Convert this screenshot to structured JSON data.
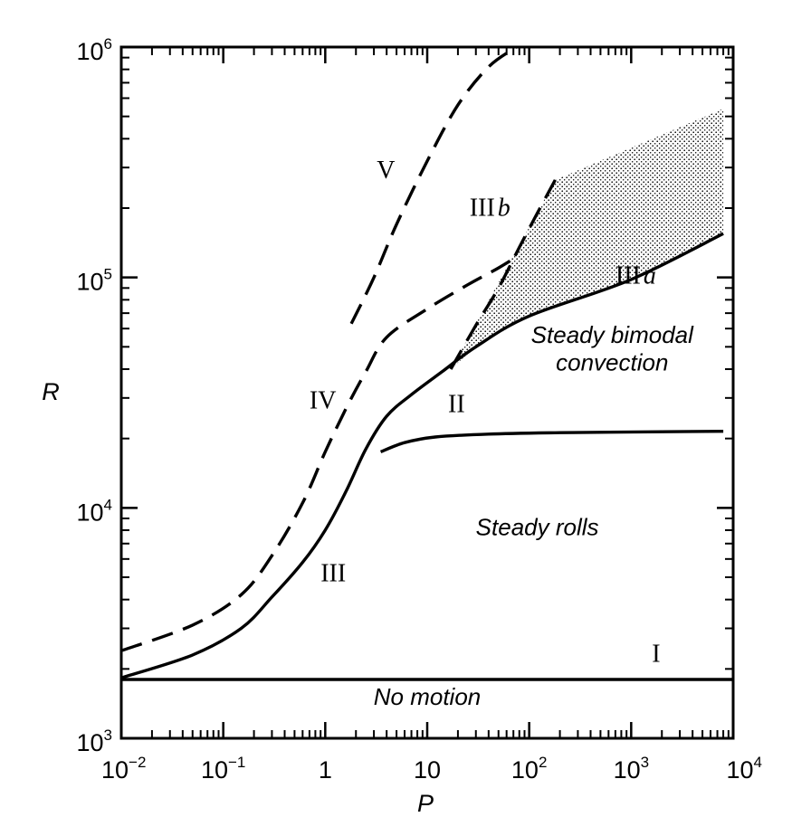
{
  "chart_data": {
    "type": "line",
    "xlabel": "P",
    "ylabel": "R",
    "x_scale": "log",
    "y_scale": "log",
    "xlim": [
      0.01,
      10000
    ],
    "ylim": [
      1000,
      1000000
    ],
    "grid": false,
    "x_ticks": [
      {
        "value": 0.01,
        "base": "10",
        "exp": "−2"
      },
      {
        "value": 0.1,
        "base": "10",
        "exp": "−1"
      },
      {
        "value": 1,
        "base": "1",
        "exp": ""
      },
      {
        "value": 10,
        "base": "10",
        "exp": ""
      },
      {
        "value": 100,
        "base": "10",
        "exp": "2"
      },
      {
        "value": 1000,
        "base": "10",
        "exp": "3"
      },
      {
        "value": 10000,
        "base": "10",
        "exp": "4"
      }
    ],
    "y_ticks": [
      {
        "value": 1000,
        "base": "10",
        "exp": "3"
      },
      {
        "value": 10000,
        "base": "10",
        "exp": "4"
      },
      {
        "value": 100000,
        "base": "10",
        "exp": "5"
      },
      {
        "value": 1000000,
        "base": "10",
        "exp": "6"
      }
    ],
    "curves": [
      {
        "label": "I",
        "style": "solid",
        "points": [
          [
            0.01,
            1800
          ],
          [
            10000,
            1800
          ]
        ]
      },
      {
        "label": "III",
        "style": "solid",
        "points": [
          [
            0.01,
            1830
          ],
          [
            0.05,
            2300
          ],
          [
            0.15,
            3000
          ],
          [
            0.3,
            4100
          ],
          [
            0.6,
            5800
          ],
          [
            1,
            8000
          ],
          [
            1.6,
            11800
          ],
          [
            2.5,
            18000
          ],
          [
            4,
            25000
          ],
          [
            7,
            31000
          ],
          [
            14,
            39000
          ],
          [
            30,
            50000
          ],
          [
            100,
            68000
          ],
          [
            1000,
            98000
          ],
          [
            8000,
            155000
          ]
        ]
      },
      {
        "label": "II",
        "style": "solid",
        "points": [
          [
            3.5,
            17500
          ],
          [
            6,
            19200
          ],
          [
            12,
            20300
          ],
          [
            40,
            20900
          ],
          [
            200,
            21200
          ],
          [
            2000,
            21400
          ],
          [
            8000,
            21500
          ]
        ]
      },
      {
        "label": "IV",
        "style": "dashed",
        "points": [
          [
            0.01,
            2400
          ],
          [
            0.05,
            3100
          ],
          [
            0.15,
            4200
          ],
          [
            0.3,
            6200
          ],
          [
            0.6,
            10500
          ],
          [
            1,
            17500
          ],
          [
            1.6,
            27000
          ],
          [
            2.5,
            39000
          ],
          [
            4,
            55000
          ],
          [
            10,
            73000
          ],
          [
            25,
            93000
          ],
          [
            50,
            110000
          ],
          [
            80,
            125000
          ]
        ]
      },
      {
        "label": "IIIb",
        "style": "dashed",
        "points": [
          [
            17,
            40000
          ],
          [
            30,
            62000
          ],
          [
            50,
            90000
          ],
          [
            80,
            135000
          ],
          [
            120,
            190000
          ],
          [
            180,
            265000
          ]
        ]
      },
      {
        "label": "V",
        "style": "dashed",
        "points": [
          [
            1.8,
            63000
          ],
          [
            3,
            100000
          ],
          [
            5,
            170000
          ],
          [
            10,
            320000
          ],
          [
            20,
            560000
          ],
          [
            40,
            820000
          ],
          [
            75,
            1000000
          ]
        ]
      }
    ],
    "shaded_region": {
      "label": "Steady bimodal convection",
      "points": [
        [
          17,
          40000
        ],
        [
          180,
          265000
        ],
        [
          8000,
          540000
        ],
        [
          8000,
          155000
        ],
        [
          1000,
          98000
        ],
        [
          100,
          68000
        ],
        [
          30,
          50000
        ]
      ]
    },
    "annotations": [
      {
        "text": "V",
        "x": 3.2,
        "y": 270000,
        "style": "roman"
      },
      {
        "text": "III",
        "text2": "b",
        "x": 26,
        "y": 185000,
        "style": "roman"
      },
      {
        "text": "III",
        "text2": "a",
        "x": 700,
        "y": 94000,
        "style": "roman"
      },
      {
        "text": "Steady bimodal",
        "x": 650,
        "y": 52000,
        "style": "region"
      },
      {
        "text": "convection",
        "x": 650,
        "y": 39500,
        "style": "region"
      },
      {
        "text": "IV",
        "x": 0.7,
        "y": 27000,
        "style": "roman"
      },
      {
        "text": "II",
        "x": 16,
        "y": 26000,
        "style": "roman"
      },
      {
        "text": "Steady rolls",
        "x": 120,
        "y": 7600,
        "style": "region"
      },
      {
        "text": "III",
        "x": 0.9,
        "y": 4800,
        "style": "roman"
      },
      {
        "text": "I",
        "x": 1600,
        "y": 2150,
        "style": "roman"
      },
      {
        "text": "No motion",
        "x": 10,
        "y": 1400,
        "style": "region"
      }
    ]
  }
}
